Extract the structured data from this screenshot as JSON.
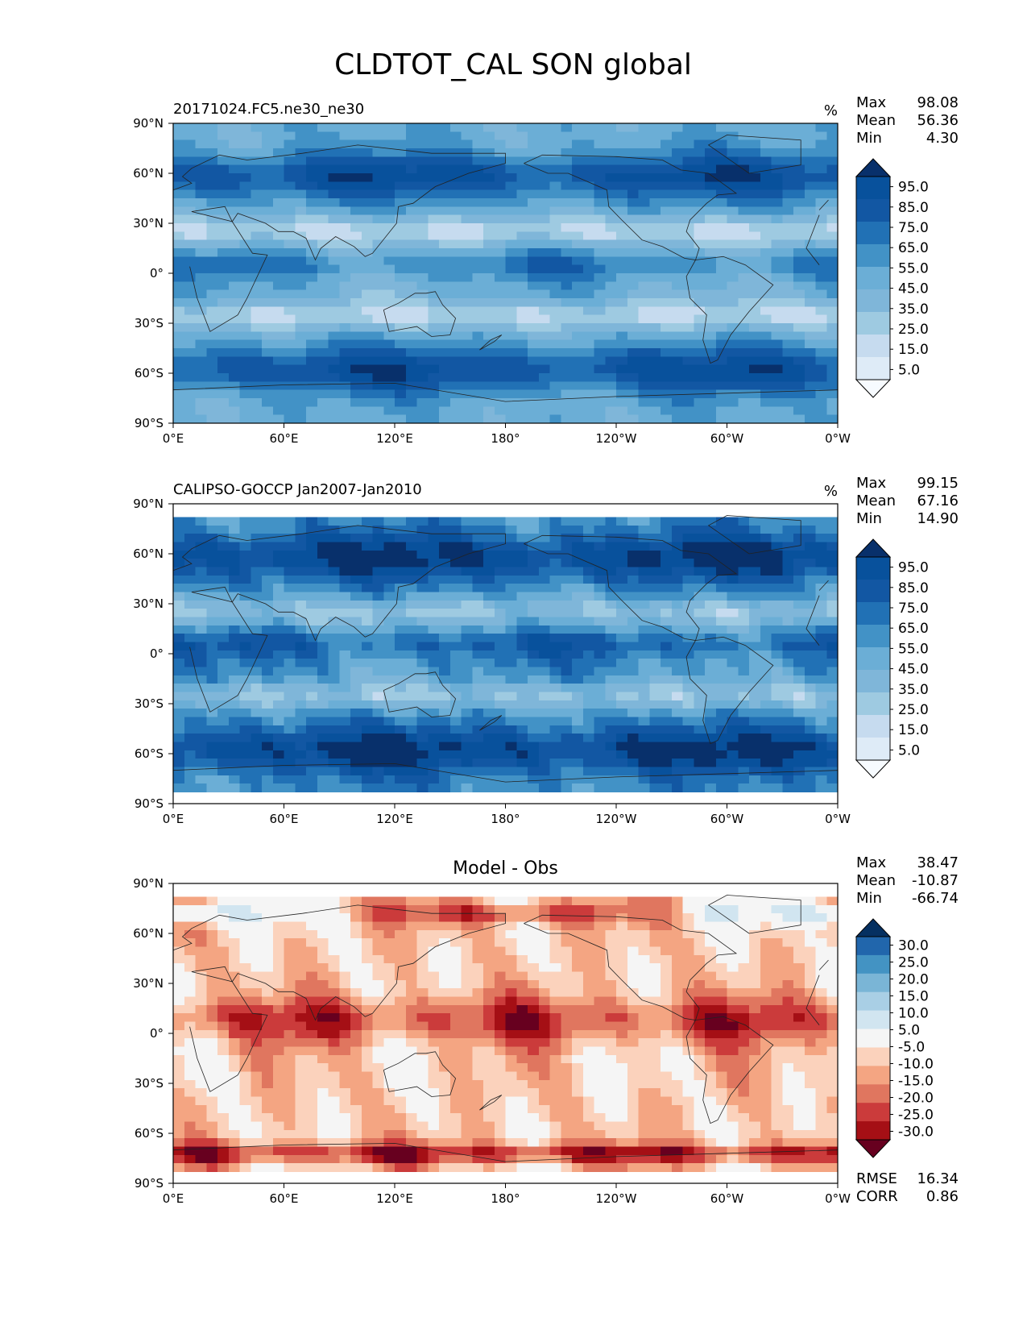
{
  "figure_title": "CLDTOT_CAL SON global",
  "colors": {
    "seq": [
      "#f7fbff",
      "#deebf7",
      "#c6dbef",
      "#9ecae1",
      "#7fb6d9",
      "#6baed6",
      "#4292c6",
      "#2171b5",
      "#1257a3",
      "#08519c",
      "#08306b"
    ],
    "div": [
      "#67001f",
      "#a50f15",
      "#cb3b3b",
      "#e0765f",
      "#f4a582",
      "#fbd2bc",
      "#f5f5f5",
      "#d1e5f0",
      "#a9cfe5",
      "#7ab5d6",
      "#4393c3",
      "#2166ac",
      "#053061"
    ],
    "land_outline": "#222222"
  },
  "chart_data": [
    {
      "type": "heatmap",
      "panel": "model",
      "left_title": "20171024.FC5.ne30_ne30",
      "center_title": "",
      "units": "%",
      "stats": [
        [
          "Max",
          "98.08"
        ],
        [
          "Mean",
          "56.36"
        ],
        [
          "Min",
          "4.30"
        ]
      ],
      "colorbar_ticks": [
        "95.0",
        "85.0",
        "75.0",
        "65.0",
        "55.0",
        "45.0",
        "35.0",
        "25.0",
        "15.0",
        "5.0"
      ],
      "colormap": "seq",
      "xticks": [
        "0°E",
        "60°E",
        "120°E",
        "180°",
        "120°W",
        "60°W",
        "0°W"
      ],
      "yticks": [
        "90°N",
        "60°N",
        "30°N",
        "0°",
        "30°S",
        "60°S",
        "90°S"
      ],
      "xlim": [
        0,
        360
      ],
      "ylim": [
        -90,
        90
      ],
      "lat_coverage": [
        -90,
        90
      ]
    },
    {
      "type": "heatmap",
      "panel": "obs",
      "left_title": "CALIPSO-GOCCP Jan2007-Jan2010",
      "center_title": "",
      "units": "%",
      "stats": [
        [
          "Max",
          "99.15"
        ],
        [
          "Mean",
          "67.16"
        ],
        [
          "Min",
          "14.90"
        ]
      ],
      "colorbar_ticks": [
        "95.0",
        "85.0",
        "75.0",
        "65.0",
        "55.0",
        "45.0",
        "35.0",
        "25.0",
        "15.0",
        "5.0"
      ],
      "colormap": "seq",
      "xticks": [
        "0°E",
        "60°E",
        "120°E",
        "180°",
        "120°W",
        "60°W",
        "0°W"
      ],
      "yticks": [
        "90°N",
        "60°N",
        "30°N",
        "0°",
        "30°S",
        "60°S",
        "90°S"
      ],
      "xlim": [
        0,
        360
      ],
      "ylim": [
        -90,
        90
      ],
      "lat_coverage": [
        -82,
        82
      ]
    },
    {
      "type": "heatmap",
      "panel": "diff",
      "left_title": "",
      "center_title": "Model - Obs",
      "units": "",
      "stats": [
        [
          "Max",
          "38.47"
        ],
        [
          "Mean",
          "-10.87"
        ],
        [
          "Min",
          "-66.74"
        ]
      ],
      "colorbar_ticks": [
        "30.0",
        "25.0",
        "20.0",
        "15.0",
        "10.0",
        "5.0",
        "-5.0",
        "-10.0",
        "-15.0",
        "-20.0",
        "-25.0",
        "-30.0"
      ],
      "colormap": "div",
      "extra_stats": [
        [
          "RMSE",
          "16.34"
        ],
        [
          "CORR",
          "0.86"
        ]
      ],
      "xticks": [
        "0°E",
        "60°E",
        "120°E",
        "180°",
        "120°W",
        "60°W",
        "0°W"
      ],
      "yticks": [
        "90°N",
        "60°N",
        "30°N",
        "0°",
        "30°S",
        "60°S",
        "90°S"
      ],
      "xlim": [
        0,
        360
      ],
      "ylim": [
        -90,
        90
      ],
      "lat_coverage": [
        -82,
        82
      ]
    }
  ]
}
